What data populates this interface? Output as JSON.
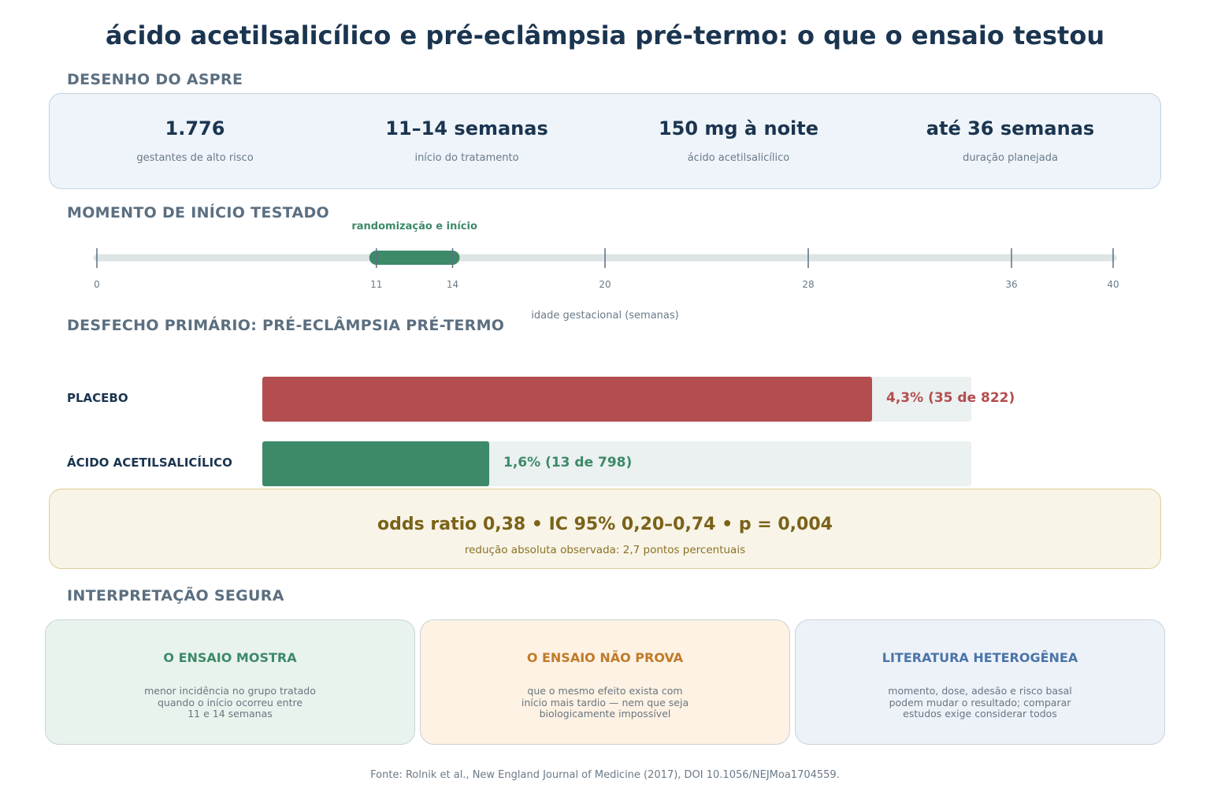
{
  "title": "ácido acetilsalicílico e pré-eclâmpsia pré-termo: o que o ensaio testou",
  "design": {
    "heading": "DESENHO DO ASPRE",
    "stats": [
      {
        "value": "1.776",
        "label": "gestantes de alto risco"
      },
      {
        "value": "11–14 semanas",
        "label": "início do tratamento"
      },
      {
        "value": "150 mg à noite",
        "label": "ácido acetilsalicílico"
      },
      {
        "value": "até 36 semanas",
        "label": "duração planejada"
      }
    ]
  },
  "timeline": {
    "heading": "MOMENTO DE INÍCIO TESTADO",
    "highlight_label": "randomização e início",
    "axis_label": "idade gestacional (semanas)",
    "domain": [
      0,
      40
    ],
    "window": [
      11,
      14
    ],
    "ticks": [
      "0",
      "11",
      "14",
      "20",
      "28",
      "36",
      "40"
    ]
  },
  "outcome": {
    "heading": "DESFECHO PRIMÁRIO: PRÉ-ECLÂMPSIA PRÉ-TERMO",
    "scale_max_percent": 5.0,
    "bars": [
      {
        "label": "PLACEBO",
        "percent": 4.3,
        "value_text": "4,3%  (35 de 822)",
        "color": "#b34d4f"
      },
      {
        "label": "ÁCIDO ACETILSALICÍLICO",
        "percent": 1.6,
        "value_text": "1,6%  (13 de 798)",
        "color": "#3d8a68"
      }
    ]
  },
  "effect": {
    "main": "odds ratio 0,38  •  IC 95% 0,20–0,74  •  p = 0,004",
    "sub": "redução absoluta observada: 2,7 pontos percentuais"
  },
  "interpretation": {
    "heading": "INTERPRETAÇÃO SEGURA",
    "cards": [
      {
        "title": "O ENSAIO MOSTRA",
        "text": "menor incidência no grupo tratado\nquando o início ocorreu entre\n11 e 14 semanas",
        "bg": "#e9f3ee",
        "accent": "#3d8a68"
      },
      {
        "title": "O ENSAIO NÃO PROVA",
        "text": "que o mesmo efeito exista com\ninício mais tardio — nem que seja\nbiologicamente impossível",
        "bg": "#fdf2e3",
        "accent": "#c07a2a"
      },
      {
        "title": "LITERATURA HETEROGÊNEA",
        "text": "momento, dose, adesão e risco basal\npodem mudar o resultado; comparar\nestudos exige considerar todos",
        "bg": "#edf2f9",
        "accent": "#4a74a8"
      }
    ]
  },
  "footer": "Fonte: Rolnik et al., New England Journal of Medicine (2017), DOI 10.1056/NEJMoa1704559."
}
